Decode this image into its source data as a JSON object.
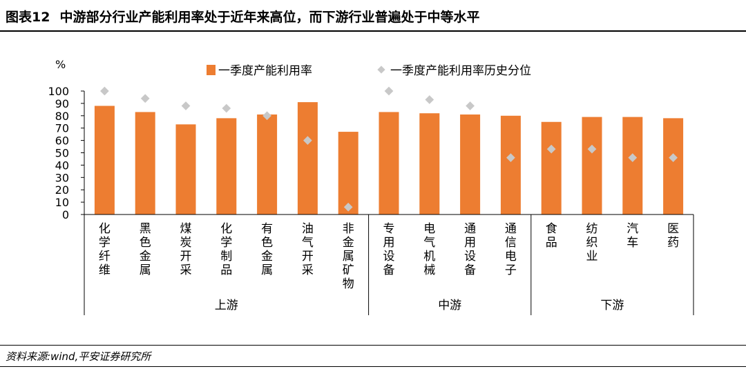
{
  "figure": {
    "number": "图表12",
    "title": "中游部分行业产能利用率处于近年来高位，而下游行业普遍处于中等水平",
    "source": "资料来源:wind,平安证券研究所"
  },
  "colors": {
    "bar": "#ED7D31",
    "marker": "#C8C8C8"
  },
  "chart_data": {
    "type": "bar",
    "ylabel": "%",
    "ylim": [
      0,
      100
    ],
    "yticks": [
      0,
      10,
      20,
      30,
      40,
      50,
      60,
      70,
      80,
      90,
      100
    ],
    "legend_position": "top",
    "categories": [
      "化学纤维",
      "黑色金属",
      "煤炭开采",
      "化学制品",
      "有色金属",
      "油气开采",
      "非金属矿物",
      "专用设备",
      "电气机械",
      "通用设备",
      "通信电子",
      "食品",
      "纺织业",
      "汽车",
      "医药"
    ],
    "groups": [
      {
        "name": "上游",
        "count": 7
      },
      {
        "name": "中游",
        "count": 4
      },
      {
        "name": "下游",
        "count": 4
      }
    ],
    "series": [
      {
        "name": "一季度产能利用率",
        "kind": "bar",
        "values": [
          88,
          83,
          73,
          78,
          81,
          91,
          67,
          83,
          82,
          81,
          80,
          75,
          79,
          79,
          78
        ]
      },
      {
        "name": "一季度产能利用率历史分位",
        "kind": "marker",
        "values": [
          100,
          94,
          88,
          86,
          80,
          60,
          6,
          100,
          93,
          88,
          46,
          53,
          53,
          46,
          46
        ]
      }
    ]
  }
}
